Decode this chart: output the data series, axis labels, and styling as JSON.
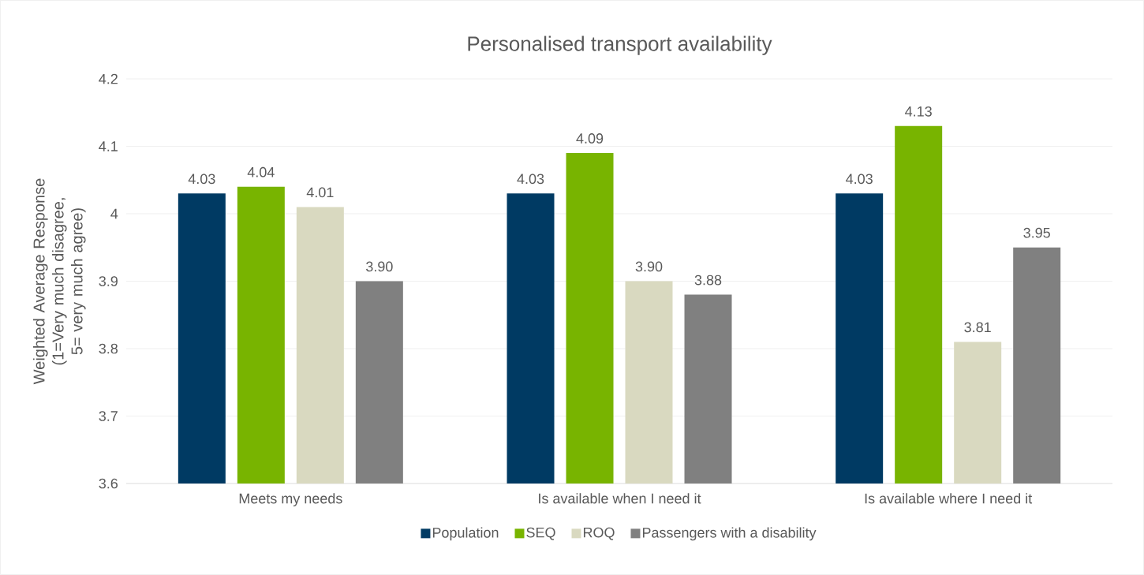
{
  "chart_data": {
    "type": "bar",
    "title": "Personalised transport availability",
    "ylabel": "Weighted Average Response (1=Very much disagree, 5= very much agree)",
    "categories": [
      "Meets my needs",
      "Is available when I need it",
      "Is available where I need it"
    ],
    "series": [
      {
        "name": "Population",
        "color": "#003a63",
        "values": [
          4.03,
          4.03,
          4.03
        ],
        "value_labels": [
          "4.03",
          "4.03",
          "4.03"
        ]
      },
      {
        "name": "SEQ",
        "color": "#78b400",
        "values": [
          4.04,
          4.09,
          4.13
        ],
        "value_labels": [
          "4.04",
          "4.09",
          "4.13"
        ]
      },
      {
        "name": "ROQ",
        "color": "#d9d9c0",
        "values": [
          4.01,
          3.9,
          3.81
        ],
        "value_labels": [
          "4.01",
          "3.90",
          "3.81"
        ]
      },
      {
        "name": "Passengers with a disability",
        "color": "#808080",
        "values": [
          3.9,
          3.88,
          3.95
        ],
        "value_labels": [
          "3.90",
          "3.88",
          "3.95"
        ]
      }
    ],
    "ylim": [
      3.6,
      4.2
    ],
    "yticks": [
      3.6,
      3.7,
      3.8,
      3.9,
      4,
      4.1,
      4.2
    ],
    "grid": "y",
    "legend": "bottom"
  }
}
